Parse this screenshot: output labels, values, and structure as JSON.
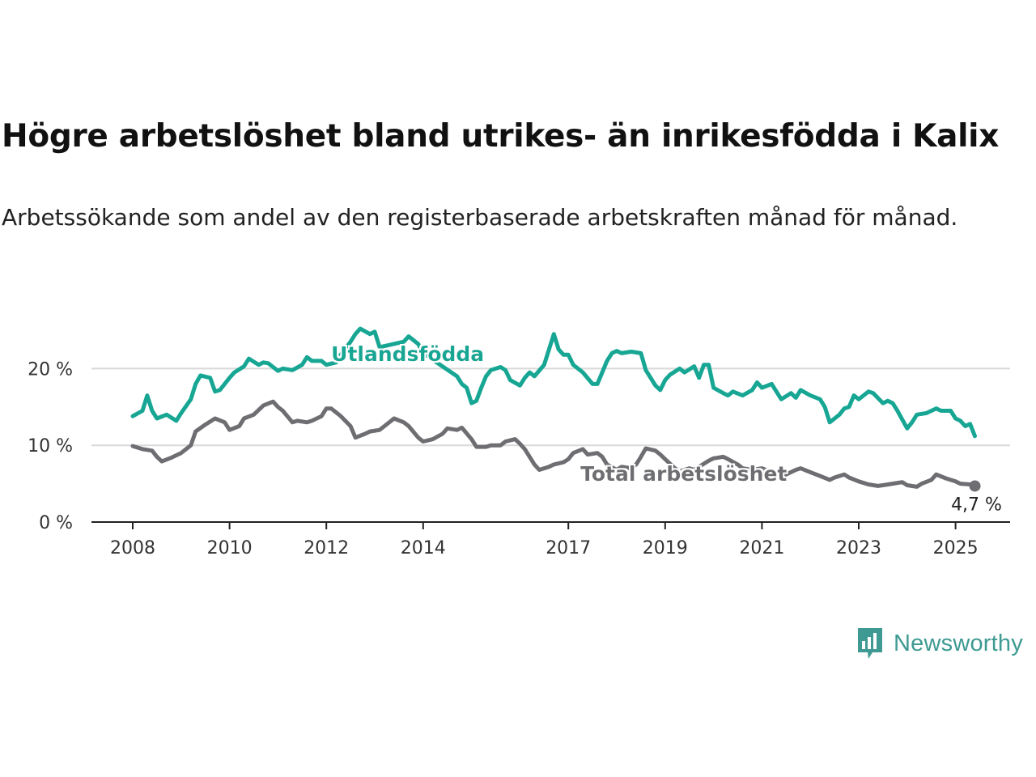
{
  "header": {
    "title": "Högre arbetslöshet bland utrikes- än inrikesfödda i Kalix",
    "subtitle": "Arbetssökande som andel av den registerbaserade arbetskraften månad för månad."
  },
  "brand": {
    "name": "Newsworthy",
    "logo_icon": "newsworthy-logo-icon",
    "color": "#3e9a92"
  },
  "chart_data": {
    "type": "line",
    "x_unit": "year",
    "ylim": [
      0,
      25
    ],
    "xlim": [
      2007.7,
      2026.2
    ],
    "grid": true,
    "y_ticks": [
      {
        "value": 0,
        "label": "0 %"
      },
      {
        "value": 10,
        "label": "10 %"
      },
      {
        "value": 20,
        "label": "20 %"
      }
    ],
    "x_ticks": [
      {
        "value": 2008,
        "label": "2008"
      },
      {
        "value": 2010,
        "label": "2010"
      },
      {
        "value": 2012,
        "label": "2012"
      },
      {
        "value": 2014,
        "label": "2014"
      },
      {
        "value": 2017,
        "label": "2017"
      },
      {
        "value": 2019,
        "label": "2019"
      },
      {
        "value": 2021,
        "label": "2021"
      },
      {
        "value": 2023,
        "label": "2023"
      },
      {
        "value": 2025,
        "label": "2025"
      }
    ],
    "series": [
      {
        "name": "Utlandsfödda",
        "color": "#17a693",
        "points": [
          [
            2008.0,
            13.8
          ],
          [
            2008.2,
            14.5
          ],
          [
            2008.3,
            16.5
          ],
          [
            2008.4,
            14.5
          ],
          [
            2008.5,
            13.5
          ],
          [
            2008.7,
            14.0
          ],
          [
            2008.9,
            13.2
          ],
          [
            2009.0,
            14.2
          ],
          [
            2009.2,
            16.0
          ],
          [
            2009.3,
            18.0
          ],
          [
            2009.4,
            19.1
          ],
          [
            2009.6,
            18.8
          ],
          [
            2009.7,
            17.0
          ],
          [
            2009.8,
            17.2
          ],
          [
            2010.0,
            18.8
          ],
          [
            2010.1,
            19.5
          ],
          [
            2010.3,
            20.3
          ],
          [
            2010.4,
            21.3
          ],
          [
            2010.6,
            20.5
          ],
          [
            2010.7,
            20.8
          ],
          [
            2010.8,
            20.7
          ],
          [
            2011.0,
            19.7
          ],
          [
            2011.1,
            20.0
          ],
          [
            2011.3,
            19.8
          ],
          [
            2011.5,
            20.5
          ],
          [
            2011.6,
            21.5
          ],
          [
            2011.7,
            21.0
          ],
          [
            2011.9,
            21.0
          ],
          [
            2012.0,
            20.5
          ],
          [
            2012.2,
            20.8
          ],
          [
            2012.3,
            21.8
          ],
          [
            2012.5,
            23.5
          ],
          [
            2012.6,
            24.5
          ],
          [
            2012.7,
            25.2
          ],
          [
            2012.9,
            24.5
          ],
          [
            2013.0,
            24.8
          ],
          [
            2013.1,
            22.8
          ],
          [
            2013.6,
            23.5
          ],
          [
            2013.7,
            24.2
          ],
          [
            2013.9,
            23.2
          ],
          [
            2014.0,
            22.0
          ],
          [
            2014.7,
            19.0
          ],
          [
            2014.8,
            18.0
          ],
          [
            2014.9,
            17.5
          ],
          [
            2015.0,
            15.5
          ],
          [
            2015.1,
            15.8
          ],
          [
            2015.2,
            17.5
          ],
          [
            2015.3,
            19.0
          ],
          [
            2015.4,
            19.8
          ],
          [
            2015.6,
            20.2
          ],
          [
            2015.7,
            19.8
          ],
          [
            2015.8,
            18.5
          ],
          [
            2016.0,
            17.8
          ],
          [
            2016.1,
            18.8
          ],
          [
            2016.2,
            19.5
          ],
          [
            2016.3,
            19.0
          ],
          [
            2016.5,
            20.5
          ],
          [
            2016.6,
            22.5
          ],
          [
            2016.7,
            24.5
          ],
          [
            2016.8,
            22.5
          ],
          [
            2016.9,
            21.8
          ],
          [
            2017.0,
            21.8
          ],
          [
            2017.1,
            20.5
          ],
          [
            2017.3,
            19.5
          ],
          [
            2017.5,
            18.0
          ],
          [
            2017.6,
            18.0
          ],
          [
            2017.8,
            21.0
          ],
          [
            2017.9,
            22.0
          ],
          [
            2018.0,
            22.3
          ],
          [
            2018.1,
            22.0
          ],
          [
            2018.3,
            22.2
          ],
          [
            2018.5,
            22.0
          ],
          [
            2018.6,
            19.8
          ],
          [
            2018.8,
            17.8
          ],
          [
            2018.9,
            17.2
          ],
          [
            2019.0,
            18.5
          ],
          [
            2019.1,
            19.2
          ],
          [
            2019.3,
            20.0
          ],
          [
            2019.4,
            19.5
          ],
          [
            2019.6,
            20.3
          ],
          [
            2019.7,
            18.8
          ],
          [
            2019.8,
            20.5
          ],
          [
            2019.9,
            20.5
          ],
          [
            2020.0,
            17.5
          ],
          [
            2020.2,
            16.8
          ],
          [
            2020.3,
            16.5
          ],
          [
            2020.4,
            17.0
          ],
          [
            2020.6,
            16.5
          ],
          [
            2020.8,
            17.2
          ],
          [
            2020.9,
            18.2
          ],
          [
            2021.0,
            17.5
          ],
          [
            2021.2,
            18.0
          ],
          [
            2021.3,
            17.0
          ],
          [
            2021.4,
            16.0
          ],
          [
            2021.6,
            16.8
          ],
          [
            2021.7,
            16.2
          ],
          [
            2021.8,
            17.2
          ],
          [
            2022.0,
            16.5
          ],
          [
            2022.2,
            16.0
          ],
          [
            2022.3,
            15.0
          ],
          [
            2022.4,
            13.0
          ],
          [
            2022.6,
            14.0
          ],
          [
            2022.7,
            14.8
          ],
          [
            2022.8,
            15.0
          ],
          [
            2022.9,
            16.5
          ],
          [
            2023.0,
            16.0
          ],
          [
            2023.2,
            17.0
          ],
          [
            2023.3,
            16.8
          ],
          [
            2023.5,
            15.5
          ],
          [
            2023.6,
            15.8
          ],
          [
            2023.7,
            15.5
          ],
          [
            2023.8,
            14.5
          ],
          [
            2024.0,
            12.2
          ],
          [
            2024.1,
            13.0
          ],
          [
            2024.2,
            14.0
          ],
          [
            2024.4,
            14.2
          ],
          [
            2024.6,
            14.8
          ],
          [
            2024.7,
            14.5
          ],
          [
            2024.9,
            14.5
          ],
          [
            2025.0,
            13.5
          ],
          [
            2025.1,
            13.2
          ],
          [
            2025.2,
            12.5
          ],
          [
            2025.3,
            12.8
          ],
          [
            2025.4,
            11.2
          ]
        ]
      },
      {
        "name": "Total arbetslöshet",
        "color": "#6e6e72",
        "points": [
          [
            2008.0,
            9.9
          ],
          [
            2008.2,
            9.5
          ],
          [
            2008.4,
            9.3
          ],
          [
            2008.5,
            8.5
          ],
          [
            2008.6,
            7.9
          ],
          [
            2008.8,
            8.4
          ],
          [
            2009.0,
            9.0
          ],
          [
            2009.2,
            10.0
          ],
          [
            2009.3,
            11.8
          ],
          [
            2009.5,
            12.7
          ],
          [
            2009.7,
            13.5
          ],
          [
            2009.9,
            13.0
          ],
          [
            2010.0,
            12.0
          ],
          [
            2010.2,
            12.5
          ],
          [
            2010.3,
            13.5
          ],
          [
            2010.5,
            14.0
          ],
          [
            2010.7,
            15.2
          ],
          [
            2010.9,
            15.7
          ],
          [
            2011.0,
            15.0
          ],
          [
            2011.1,
            14.5
          ],
          [
            2011.3,
            13.0
          ],
          [
            2011.4,
            13.2
          ],
          [
            2011.6,
            13.0
          ],
          [
            2011.7,
            13.2
          ],
          [
            2011.9,
            13.8
          ],
          [
            2012.0,
            14.8
          ],
          [
            2012.1,
            14.8
          ],
          [
            2012.3,
            13.8
          ],
          [
            2012.5,
            12.5
          ],
          [
            2012.6,
            11.0
          ],
          [
            2012.8,
            11.5
          ],
          [
            2012.9,
            11.8
          ],
          [
            2013.1,
            12.0
          ],
          [
            2013.3,
            13.0
          ],
          [
            2013.4,
            13.5
          ],
          [
            2013.6,
            13.0
          ],
          [
            2013.7,
            12.5
          ],
          [
            2013.9,
            11.0
          ],
          [
            2014.0,
            10.5
          ],
          [
            2014.2,
            10.8
          ],
          [
            2014.4,
            11.5
          ],
          [
            2014.5,
            12.2
          ],
          [
            2014.7,
            12.0
          ],
          [
            2014.8,
            12.3
          ],
          [
            2015.0,
            10.8
          ],
          [
            2015.1,
            9.8
          ],
          [
            2015.3,
            9.8
          ],
          [
            2015.4,
            10.0
          ],
          [
            2015.6,
            10.0
          ],
          [
            2015.7,
            10.5
          ],
          [
            2015.9,
            10.8
          ],
          [
            2016.0,
            10.2
          ],
          [
            2016.1,
            9.5
          ],
          [
            2016.3,
            7.5
          ],
          [
            2016.4,
            6.8
          ],
          [
            2016.6,
            7.2
          ],
          [
            2016.7,
            7.5
          ],
          [
            2016.9,
            7.8
          ],
          [
            2017.0,
            8.2
          ],
          [
            2017.1,
            9.0
          ],
          [
            2017.3,
            9.5
          ],
          [
            2017.4,
            8.8
          ],
          [
            2017.6,
            9.0
          ],
          [
            2017.7,
            8.5
          ],
          [
            2017.8,
            7.5
          ],
          [
            2018.0,
            6.8
          ],
          [
            2018.1,
            7.2
          ],
          [
            2018.3,
            7.0
          ],
          [
            2018.4,
            7.5
          ],
          [
            2018.5,
            8.5
          ],
          [
            2018.6,
            9.6
          ],
          [
            2018.8,
            9.3
          ],
          [
            2018.9,
            8.8
          ],
          [
            2019.0,
            8.2
          ],
          [
            2019.2,
            7.0
          ],
          [
            2019.3,
            6.6
          ],
          [
            2019.5,
            7.0
          ],
          [
            2019.6,
            6.8
          ],
          [
            2019.7,
            7.2
          ],
          [
            2019.9,
            8.0
          ],
          [
            2020.0,
            8.3
          ],
          [
            2020.2,
            8.5
          ],
          [
            2020.3,
            8.2
          ],
          [
            2020.5,
            7.5
          ],
          [
            2020.6,
            7.0
          ],
          [
            2020.8,
            6.8
          ],
          [
            2021.0,
            7.0
          ],
          [
            2021.2,
            6.5
          ],
          [
            2021.3,
            6.0
          ],
          [
            2021.5,
            6.2
          ],
          [
            2021.7,
            6.8
          ],
          [
            2021.8,
            7.0
          ],
          [
            2022.0,
            6.5
          ],
          [
            2022.2,
            6.0
          ],
          [
            2022.4,
            5.5
          ],
          [
            2022.5,
            5.8
          ],
          [
            2022.7,
            6.2
          ],
          [
            2022.8,
            5.8
          ],
          [
            2023.0,
            5.3
          ],
          [
            2023.2,
            4.9
          ],
          [
            2023.4,
            4.7
          ],
          [
            2023.5,
            4.8
          ],
          [
            2023.7,
            5.0
          ],
          [
            2023.9,
            5.2
          ],
          [
            2024.0,
            4.8
          ],
          [
            2024.2,
            4.6
          ],
          [
            2024.3,
            5.0
          ],
          [
            2024.5,
            5.5
          ],
          [
            2024.6,
            6.2
          ],
          [
            2024.8,
            5.7
          ],
          [
            2025.0,
            5.3
          ],
          [
            2025.1,
            5.0
          ],
          [
            2025.3,
            4.9
          ],
          [
            2025.4,
            4.7
          ]
        ]
      }
    ],
    "series_labels": [
      {
        "text": "Utlandsfödda",
        "series": "Utlandsfödda",
        "x": 2012.1,
        "y": 21.0
      },
      {
        "text": "Total arbetslöshet",
        "series": "Total arbetslöshet",
        "x": 2017.25,
        "y": 5.4
      }
    ],
    "end_label": {
      "text": "4,7 %",
      "x": 2025.4,
      "y": 4.7
    }
  }
}
